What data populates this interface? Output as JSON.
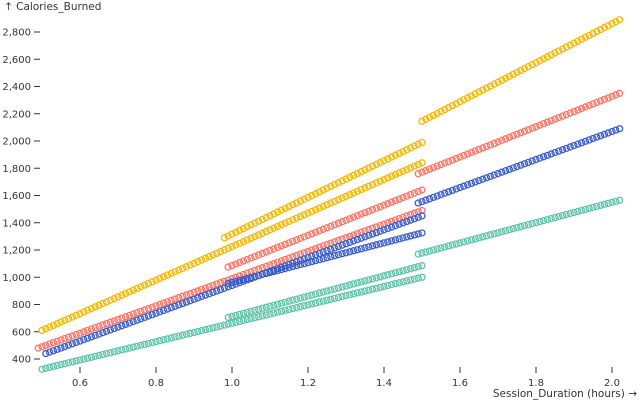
{
  "chart_data": {
    "type": "scatter",
    "ylabel": "↑ Calories_Burned",
    "xlabel": "Session_Duration (hours) →",
    "xlim": [
      0.5,
      2.0
    ],
    "ylim": [
      400,
      2900
    ],
    "x_ticks": [
      0.6,
      0.8,
      1.0,
      1.2,
      1.4,
      1.6,
      1.8,
      2.0
    ],
    "y_ticks": [
      400,
      600,
      800,
      1000,
      1200,
      1400,
      1600,
      1800,
      2000,
      2200,
      2400,
      2600,
      2800
    ],
    "x_tick_labels": [
      "0.6",
      "0.8",
      "1.0",
      "1.2",
      "1.4",
      "1.6",
      "1.8",
      "2.0"
    ],
    "y_tick_labels": [
      "400",
      "600",
      "800",
      "1,000",
      "1,200",
      "1,400",
      "1,600",
      "1,800",
      "2,000",
      "2,200",
      "2,400",
      "2,600",
      "2,800"
    ],
    "grid": false,
    "legend": "none",
    "marker": "hollow circle",
    "point_step": 0.01,
    "series": [
      {
        "color": "#f5b800",
        "segments": [
          {
            "x_range": [
              0.5,
              1.5
            ],
            "y_range": [
              610,
              1840
            ]
          },
          {
            "x_range": [
              0.98,
              1.5
            ],
            "y_range": [
              1290,
              1990
            ]
          },
          {
            "x_range": [
              1.5,
              2.02
            ],
            "y_range": [
              2145,
              2890
            ]
          }
        ]
      },
      {
        "color": "#fa7465",
        "segments": [
          {
            "x_range": [
              0.49,
              1.5
            ],
            "y_range": [
              480,
              1490
            ]
          },
          {
            "x_range": [
              0.99,
              1.5
            ],
            "y_range": [
              1075,
              1640
            ]
          },
          {
            "x_range": [
              1.49,
              2.02
            ],
            "y_range": [
              1760,
              2350
            ]
          }
        ]
      },
      {
        "color": "#3a5cc8",
        "segments": [
          {
            "x_range": [
              0.51,
              1.5
            ],
            "y_range": [
              440,
              1450
            ]
          },
          {
            "x_range": [
              0.99,
              1.5
            ],
            "y_range": [
              955,
              1325
            ]
          },
          {
            "x_range": [
              1.49,
              2.02
            ],
            "y_range": [
              1545,
              2090
            ]
          }
        ]
      },
      {
        "color": "#5ec4aa",
        "segments": [
          {
            "x_range": [
              0.5,
              1.5
            ],
            "y_range": [
              325,
              1000
            ]
          },
          {
            "x_range": [
              0.99,
              1.5
            ],
            "y_range": [
              705,
              1085
            ]
          },
          {
            "x_range": [
              1.49,
              2.02
            ],
            "y_range": [
              1170,
              1565
            ]
          }
        ]
      }
    ]
  }
}
